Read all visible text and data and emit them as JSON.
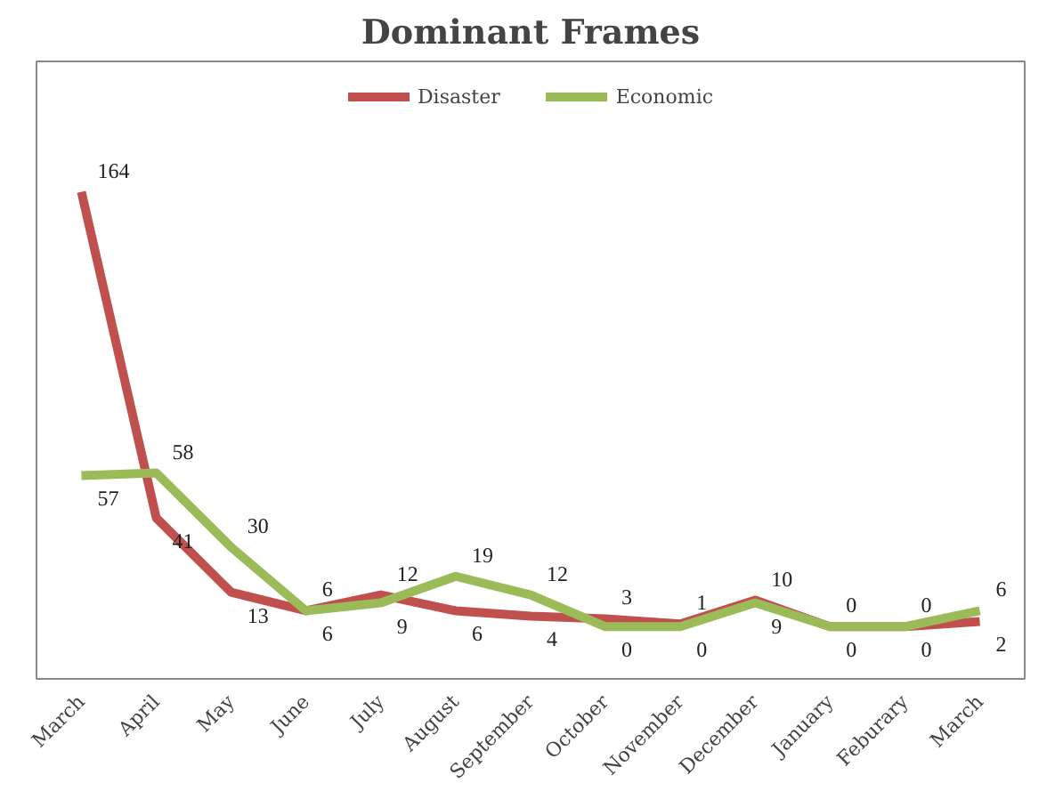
{
  "chart_data": {
    "type": "line",
    "title": "Dominant Frames",
    "categories": [
      "March",
      "April",
      "May",
      "June",
      "July",
      "August",
      "September",
      "October",
      "November",
      "December",
      "January",
      "Feburary",
      "March"
    ],
    "series": [
      {
        "name": "Disaster",
        "color": "#c0504d",
        "values": [
          164,
          41,
          13,
          6,
          12,
          6,
          4,
          3,
          1,
          10,
          0,
          0,
          2
        ]
      },
      {
        "name": "Economic",
        "color": "#9bbb59",
        "values": [
          57,
          58,
          30,
          6,
          9,
          19,
          12,
          0,
          0,
          9,
          0,
          0,
          6
        ]
      }
    ],
    "data_labels": true,
    "legend": "top",
    "line_style": "solid"
  }
}
